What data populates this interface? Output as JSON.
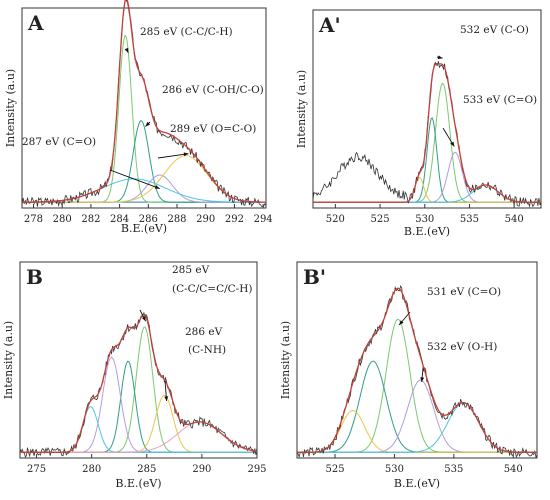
{
  "colors": {
    "raw": "#333333",
    "envelope": "#c2413a",
    "baseline": "#2b7bb9",
    "components": [
      "#7bc96f",
      "#2f9e89",
      "#b39ddb",
      "#e6c84a",
      "#4fc3e8",
      "#e8a0c8",
      "#8ab04c"
    ]
  },
  "chart_data": [
    {
      "type": "line",
      "panel_label": "A",
      "xlabel": "B.E.(eV)",
      "ylabel": "Intensity (a.u)",
      "xlim": [
        277.2,
        294.2
      ],
      "xticks": [
        278,
        280,
        282,
        284,
        286,
        288,
        290,
        292,
        294
      ],
      "reversed": false,
      "series": [
        {
          "center": 284.4,
          "height": 0.86,
          "width": 0.45
        },
        {
          "center": 285.5,
          "height": 0.42,
          "width": 0.55
        },
        {
          "center": 286.8,
          "height": 0.14,
          "width": 0.9
        },
        {
          "center": 288.6,
          "height": 0.24,
          "width": 1.5
        },
        {
          "center": 285.0,
          "height": 0.12,
          "width": 2.2
        }
      ],
      "annotations": [
        {
          "text": "285 eV (C-C/C-H)",
          "x": 284.6,
          "y": 0.8
        },
        {
          "text": "286 eV (C-OH/C-O)",
          "x": 285.8,
          "y": 0.42
        },
        {
          "text": "289 eV (O=C-O)",
          "x": 288.8,
          "y": 0.28
        },
        {
          "text": "287 eV (C=O)",
          "x": 286.8,
          "y": 0.1
        }
      ]
    },
    {
      "type": "line",
      "panel_label": "A'",
      "xlabel": "B.E.(eV)",
      "ylabel": "Intensity (a.u)",
      "xlim": [
        517.5,
        543
      ],
      "xticks": [
        520,
        525,
        530,
        535,
        540
      ],
      "reversed": false,
      "series": [
        {
          "center": 532.0,
          "height": 0.62,
          "width": 0.8
        },
        {
          "center": 530.8,
          "height": 0.44,
          "width": 0.55
        },
        {
          "center": 533.4,
          "height": 0.26,
          "width": 0.8
        },
        {
          "center": 529.4,
          "height": 0.13,
          "width": 0.5
        },
        {
          "center": 536.8,
          "height": 0.09,
          "width": 1.4
        }
      ],
      "annotations": [
        {
          "text": "532 eV (C-O)",
          "x": 532.0,
          "y": 0.78
        },
        {
          "text": "533 eV (C=O)",
          "x": 533.3,
          "y": 0.32
        }
      ]
    },
    {
      "type": "line",
      "panel_label": "B",
      "xlabel": "B.E.(eV)",
      "ylabel": "Intensity (a.u)",
      "xlim": [
        273.5,
        295
      ],
      "xticks": [
        275,
        280,
        285,
        290,
        295
      ],
      "reversed": false,
      "series": [
        {
          "center": 284.8,
          "height": 0.66,
          "width": 0.75
        },
        {
          "center": 283.3,
          "height": 0.48,
          "width": 0.65
        },
        {
          "center": 281.8,
          "height": 0.5,
          "width": 0.8
        },
        {
          "center": 286.6,
          "height": 0.3,
          "width": 0.8
        },
        {
          "center": 279.9,
          "height": 0.24,
          "width": 0.7
        },
        {
          "center": 289.8,
          "height": 0.16,
          "width": 2.0
        }
      ],
      "annotations": [
        {
          "text": "285 eV",
          "x": 284.9,
          "y": 0.72
        },
        {
          "text": "(C-C/C=C/C-H)",
          "x": 284.9,
          "y": 0.72
        },
        {
          "text": "286 eV",
          "x": 286.8,
          "y": 0.3
        },
        {
          "text": "(C-NH)",
          "x": 286.8,
          "y": 0.3
        }
      ]
    },
    {
      "type": "line",
      "panel_label": "B'",
      "xlabel": "B.E.(eV)",
      "ylabel": "Intensity (a.u)",
      "xlim": [
        521.8,
        542
      ],
      "xticks": [
        525,
        530,
        535,
        540
      ],
      "reversed": false,
      "series": [
        {
          "center": 530.3,
          "height": 0.7,
          "width": 1.0
        },
        {
          "center": 528.2,
          "height": 0.48,
          "width": 1.1
        },
        {
          "center": 532.2,
          "height": 0.38,
          "width": 1.1
        },
        {
          "center": 526.5,
          "height": 0.22,
          "width": 1.0
        },
        {
          "center": 535.8,
          "height": 0.26,
          "width": 1.3
        }
      ],
      "annotations": [
        {
          "text": "531 eV (C=O)",
          "x": 530.4,
          "y": 0.7
        },
        {
          "text": "532 eV (O-H)",
          "x": 532.3,
          "y": 0.4
        }
      ]
    }
  ]
}
